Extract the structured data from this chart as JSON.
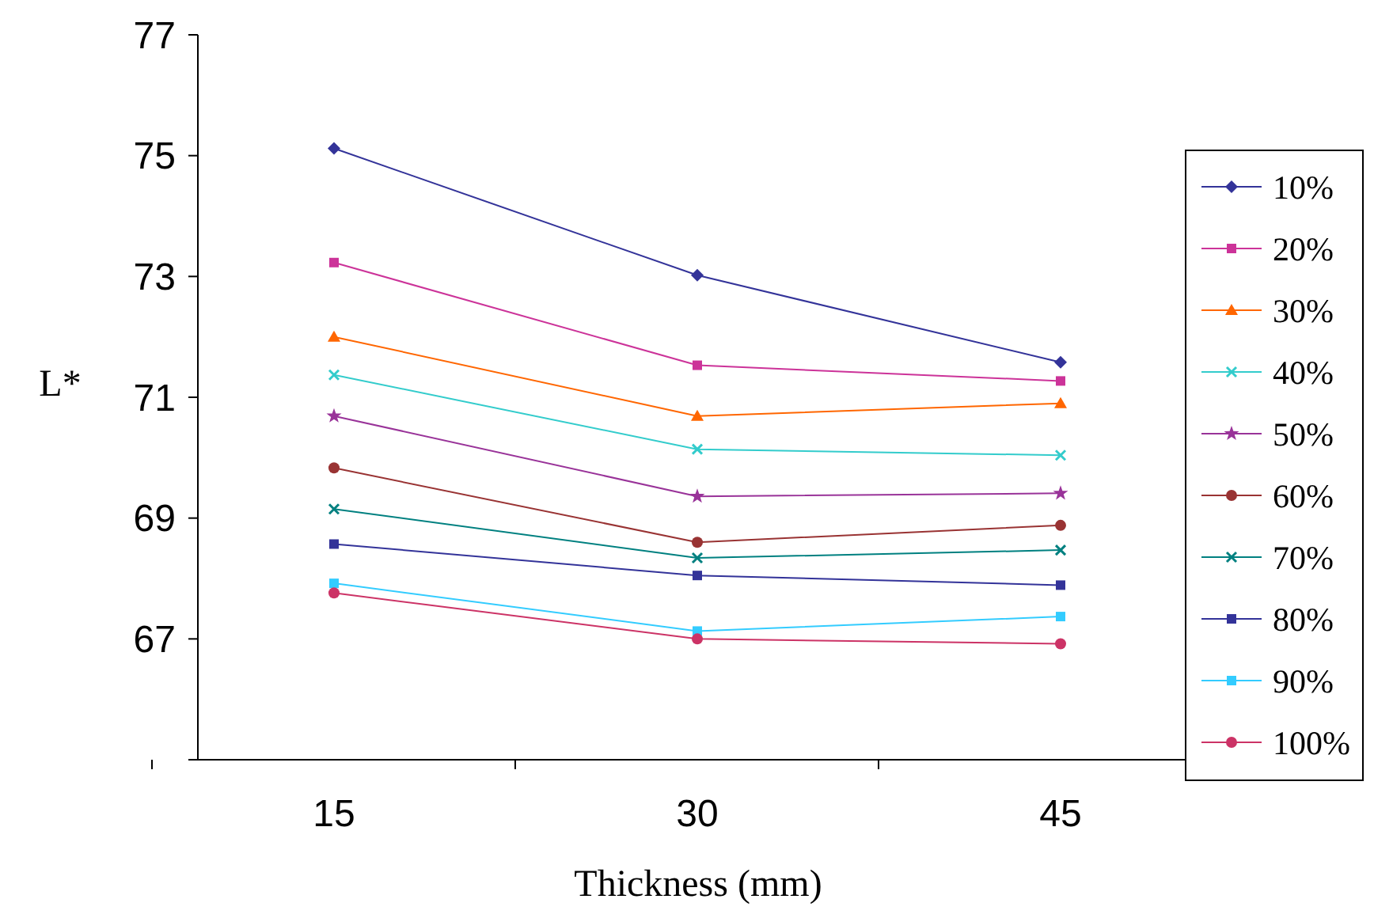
{
  "chart_data": {
    "type": "line",
    "xlabel": "Thickness (mm)",
    "ylabel": "L*",
    "categories": [
      "15",
      "30",
      "45"
    ],
    "ylim": [
      65,
      77
    ],
    "yticks": [
      {
        "value": 65,
        "label": null
      },
      67,
      69,
      71,
      73,
      75,
      77
    ],
    "legend": "right",
    "line_style": "solid",
    "series": [
      {
        "name": "10%",
        "color": "#333399",
        "marker": "diamond",
        "values": [
          75.12,
          73.02,
          71.58
        ]
      },
      {
        "name": "20%",
        "color": "#cc3399",
        "marker": "square",
        "values": [
          73.23,
          71.53,
          71.27
        ]
      },
      {
        "name": "30%",
        "color": "#ff6600",
        "marker": "triangle",
        "values": [
          72.0,
          70.69,
          70.9
        ]
      },
      {
        "name": "40%",
        "color": "#33cccc",
        "marker": "cross",
        "values": [
          71.37,
          70.14,
          70.04
        ]
      },
      {
        "name": "50%",
        "color": "#993399",
        "marker": "star",
        "values": [
          70.69,
          69.36,
          69.41
        ]
      },
      {
        "name": "60%",
        "color": "#993333",
        "marker": "circle",
        "values": [
          69.83,
          68.6,
          68.88
        ]
      },
      {
        "name": "70%",
        "color": "#008080",
        "marker": "cross",
        "values": [
          69.15,
          68.34,
          68.47
        ]
      },
      {
        "name": "80%",
        "color": "#333399",
        "marker": "square",
        "values": [
          68.57,
          68.05,
          67.89
        ]
      },
      {
        "name": "90%",
        "color": "#33ccff",
        "marker": "square",
        "values": [
          67.92,
          67.13,
          67.37
        ]
      },
      {
        "name": "100%",
        "color": "#cc3366",
        "marker": "circle",
        "values": [
          67.76,
          67.0,
          66.92
        ]
      }
    ]
  }
}
